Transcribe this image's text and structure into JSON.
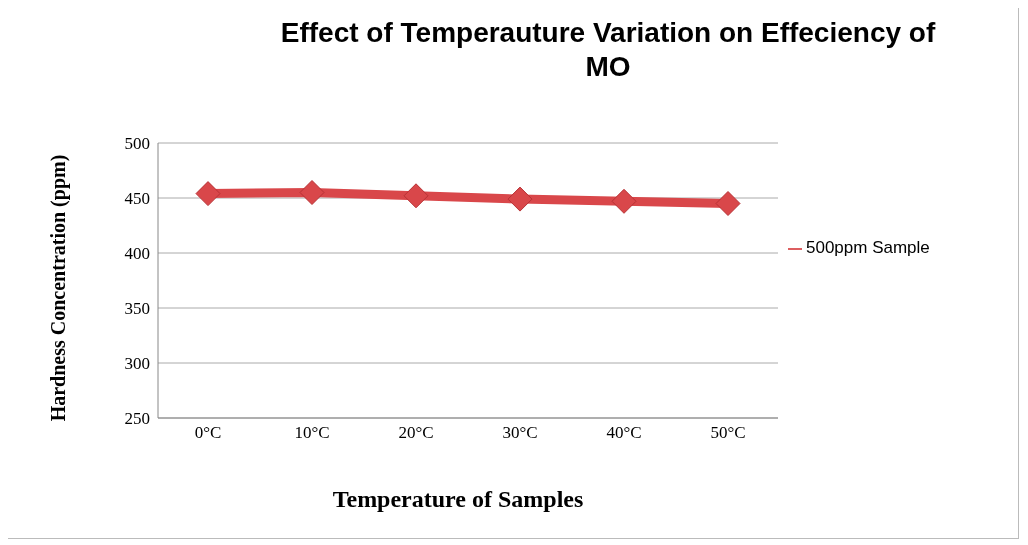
{
  "chart_data": {
    "type": "line",
    "title": "Effect of Temperauture Variation on Effeciency of MO",
    "xlabel": "Temperature of Samples",
    "ylabel": "Hardness Concentration (ppm)",
    "categories": [
      "0°C",
      "10°C",
      "20°C",
      "30°C",
      "40°C",
      "50°C"
    ],
    "series": [
      {
        "name": "500ppm Sample",
        "color": "#d9474a",
        "values": [
          454,
          455,
          452,
          449,
          447,
          445
        ]
      }
    ],
    "ylim": [
      250,
      500
    ],
    "yticks": [
      250,
      300,
      350,
      400,
      450,
      500
    ],
    "grid": "y",
    "legend": "right",
    "marker": "diamond",
    "line_style": "solid"
  }
}
